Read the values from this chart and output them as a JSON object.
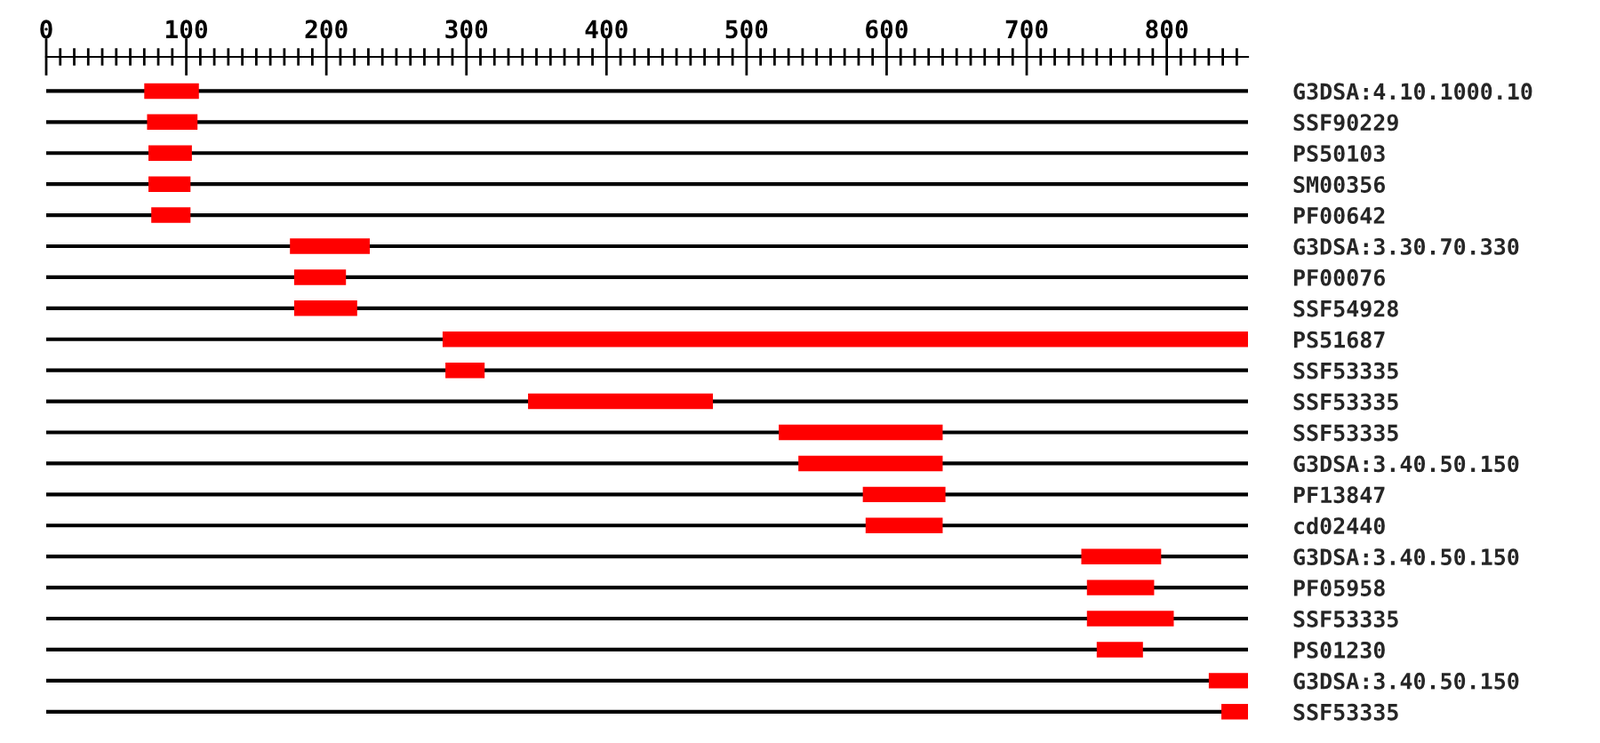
{
  "chart_data": {
    "type": "bar",
    "orientation": "horizontal",
    "grid": "y",
    "categories": [
      "G3DSA:4.10.1000.10",
      "SSF90229",
      "PS50103",
      "SM00356",
      "PF00642",
      "G3DSA:3.30.70.330",
      "PF00076",
      "SSF54928",
      "PS51687",
      "SSF53335",
      "SSF53335",
      "SSF53335",
      "G3DSA:3.40.50.150",
      "PF13847",
      "cd02440",
      "G3DSA:3.40.50.150",
      "PF05958",
      "SSF53335",
      "PS01230",
      "G3DSA:3.40.50.150",
      "SSF53335"
    ],
    "base": [
      70,
      72,
      73,
      73,
      75,
      174,
      177,
      177,
      283,
      285,
      344,
      523,
      537,
      583,
      585,
      739,
      743,
      743,
      750,
      830,
      839
    ],
    "values": [
      39,
      36,
      31,
      30,
      28,
      57,
      37,
      45,
      575,
      28,
      132,
      117,
      103,
      59,
      55,
      57,
      48,
      62,
      33,
      28,
      19
    ],
    "color": "#ff0000",
    "xlim": [
      0,
      858
    ],
    "xticks": [
      0,
      {
        "value": 10,
        "label": null
      },
      {
        "value": 20,
        "label": null
      },
      {
        "value": 30,
        "label": null
      },
      {
        "value": 40,
        "label": null
      },
      {
        "value": 50,
        "label": null
      },
      {
        "value": 60,
        "label": null
      },
      {
        "value": 70,
        "label": null
      },
      {
        "value": 80,
        "label": null
      },
      {
        "value": 90,
        "label": null
      },
      100,
      {
        "value": 110,
        "label": null
      },
      {
        "value": 120,
        "label": null
      },
      {
        "value": 130,
        "label": null
      },
      {
        "value": 140,
        "label": null
      },
      {
        "value": 150,
        "label": null
      },
      {
        "value": 160,
        "label": null
      },
      {
        "value": 170,
        "label": null
      },
      {
        "value": 180,
        "label": null
      },
      {
        "value": 190,
        "label": null
      },
      200,
      {
        "value": 210,
        "label": null
      },
      {
        "value": 220,
        "label": null
      },
      {
        "value": 230,
        "label": null
      },
      {
        "value": 240,
        "label": null
      },
      {
        "value": 250,
        "label": null
      },
      {
        "value": 260,
        "label": null
      },
      {
        "value": 270,
        "label": null
      },
      {
        "value": 280,
        "label": null
      },
      {
        "value": 290,
        "label": null
      },
      300,
      {
        "value": 310,
        "label": null
      },
      {
        "value": 320,
        "label": null
      },
      {
        "value": 330,
        "label": null
      },
      {
        "value": 340,
        "label": null
      },
      {
        "value": 350,
        "label": null
      },
      {
        "value": 360,
        "label": null
      },
      {
        "value": 370,
        "label": null
      },
      {
        "value": 380,
        "label": null
      },
      {
        "value": 390,
        "label": null
      },
      400,
      {
        "value": 410,
        "label": null
      },
      {
        "value": 420,
        "label": null
      },
      {
        "value": 430,
        "label": null
      },
      {
        "value": 440,
        "label": null
      },
      {
        "value": 450,
        "label": null
      },
      {
        "value": 460,
        "label": null
      },
      {
        "value": 470,
        "label": null
      },
      {
        "value": 480,
        "label": null
      },
      {
        "value": 490,
        "label": null
      },
      500,
      {
        "value": 510,
        "label": null
      },
      {
        "value": 520,
        "label": null
      },
      {
        "value": 530,
        "label": null
      },
      {
        "value": 540,
        "label": null
      },
      {
        "value": 550,
        "label": null
      },
      {
        "value": 560,
        "label": null
      },
      {
        "value": 570,
        "label": null
      },
      {
        "value": 580,
        "label": null
      },
      {
        "value": 590,
        "label": null
      },
      600,
      {
        "value": 610,
        "label": null
      },
      {
        "value": 620,
        "label": null
      },
      {
        "value": 630,
        "label": null
      },
      {
        "value": 640,
        "label": null
      },
      {
        "value": 650,
        "label": null
      },
      {
        "value": 660,
        "label": null
      },
      {
        "value": 670,
        "label": null
      },
      {
        "value": 680,
        "label": null
      },
      {
        "value": 690,
        "label": null
      },
      700,
      {
        "value": 710,
        "label": null
      },
      {
        "value": 720,
        "label": null
      },
      {
        "value": 730,
        "label": null
      },
      {
        "value": 740,
        "label": null
      },
      {
        "value": 750,
        "label": null
      },
      {
        "value": 760,
        "label": null
      },
      {
        "value": 770,
        "label": null
      },
      {
        "value": 780,
        "label": null
      },
      {
        "value": 790,
        "label": null
      },
      800,
      {
        "value": 810,
        "label": null
      },
      {
        "value": 820,
        "label": null
      },
      {
        "value": 830,
        "label": null
      },
      {
        "value": 840,
        "label": null
      },
      {
        "value": 850,
        "label": null
      }
    ]
  }
}
